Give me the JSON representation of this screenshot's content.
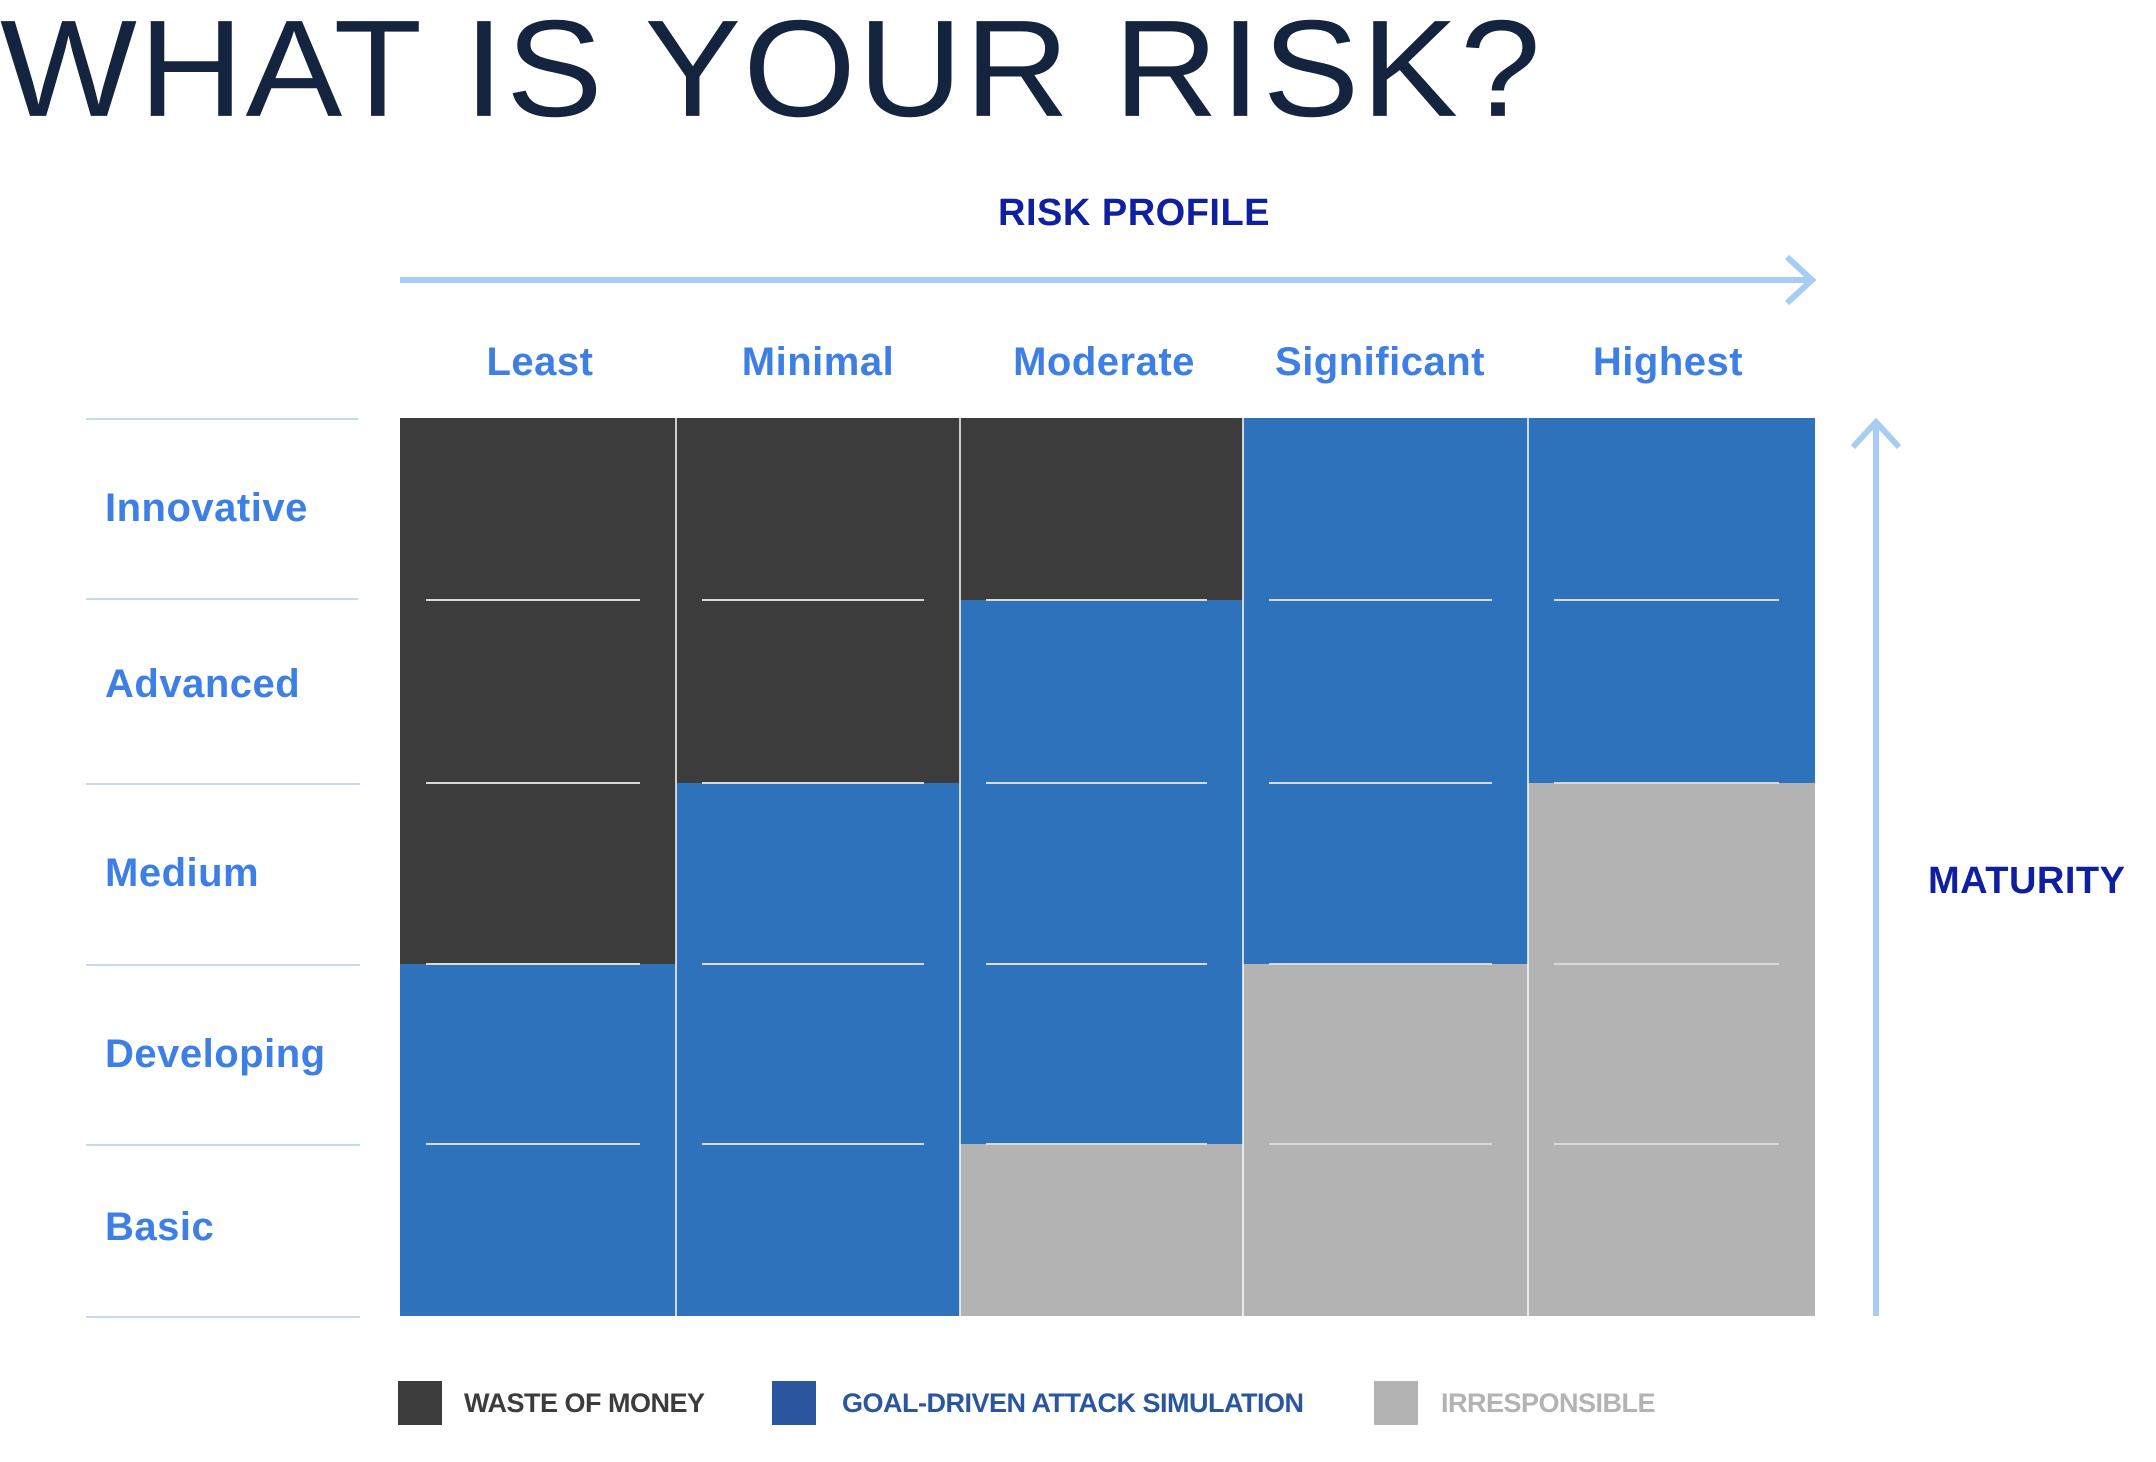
{
  "title": "WHAT IS YOUR RISK?",
  "x_axis_label": "RISK PROFILE",
  "y_axis_label": "MATURITY",
  "columns": [
    "Least",
    "Minimal",
    "Moderate",
    "Significant",
    "Highest"
  ],
  "rows": [
    "Innovative",
    "Advanced",
    "Medium",
    "Developing",
    "Basic"
  ],
  "legend": [
    {
      "label": "WASTE OF MONEY",
      "color": "#3c3c3c",
      "text_color": "#3c3c3c"
    },
    {
      "label": "GOAL-DRIVEN ATTACK SIMULATION",
      "color": "#2a56a0",
      "text_color": "#2a56a0"
    },
    {
      "label": "IRRESPONSIBLE",
      "color": "#b3b3b3",
      "text_color": "#b3b3b3"
    }
  ],
  "colors": {
    "waste": "#3c3c3c",
    "goal": "#2e72bb",
    "irresponsible": "#b3b3b3",
    "axis_arrow": "#a9cdf2",
    "axis_text": "#0e1fa0",
    "label_text": "#3e7fe6",
    "title_text": "#14243f"
  },
  "matrix": [
    [
      "waste",
      "waste",
      "waste",
      "goal",
      "goal"
    ],
    [
      "waste",
      "waste",
      "goal",
      "goal",
      "goal"
    ],
    [
      "waste",
      "goal",
      "goal",
      "goal",
      "irresponsible"
    ],
    [
      "goal",
      "goal",
      "goal",
      "irresponsible",
      "irresponsible"
    ],
    [
      "goal",
      "goal",
      "irresponsible",
      "irresponsible",
      "irresponsible"
    ]
  ]
}
